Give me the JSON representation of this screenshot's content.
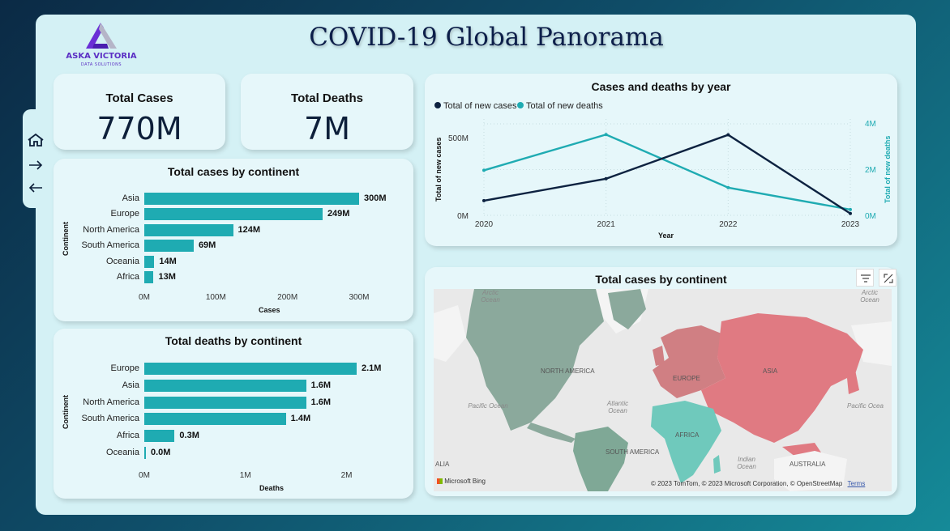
{
  "header": {
    "title": "COVID-19 Global Panorama",
    "logo_brand": "ASKA VICTORIA",
    "logo_sub": "DATA SOLUTIONS"
  },
  "nav": {
    "icons": [
      "home-icon",
      "arrow-right-icon",
      "arrow-left-icon"
    ]
  },
  "kpis": {
    "total_cases_label": "Total Cases",
    "total_cases_value": "770M",
    "total_deaths_label": "Total Deaths",
    "total_deaths_value": "7M"
  },
  "cases_by_continent": {
    "title": "Total cases by continent",
    "xlabel": "Cases",
    "ylabel": "Continent",
    "ticks": [
      "0M",
      "100M",
      "200M",
      "300M"
    ],
    "rows": [
      {
        "label": "Asia",
        "value": 300,
        "display": "300M"
      },
      {
        "label": "Europe",
        "value": 249,
        "display": "249M"
      },
      {
        "label": "North America",
        "value": 124,
        "display": "124M"
      },
      {
        "label": "South America",
        "value": 69,
        "display": "69M"
      },
      {
        "label": "Oceania",
        "value": 14,
        "display": "14M"
      },
      {
        "label": "Africa",
        "value": 13,
        "display": "13M"
      }
    ]
  },
  "deaths_by_continent": {
    "title": "Total deaths by continent",
    "xlabel": "Deaths",
    "ylabel": "Continent",
    "ticks": [
      "0M",
      "1M",
      "2M"
    ],
    "rows": [
      {
        "label": "Europe",
        "value": 2.1,
        "display": "2.1M"
      },
      {
        "label": "Asia",
        "value": 1.6,
        "display": "1.6M"
      },
      {
        "label": "North America",
        "value": 1.6,
        "display": "1.6M"
      },
      {
        "label": "South America",
        "value": 1.4,
        "display": "1.4M"
      },
      {
        "label": "Africa",
        "value": 0.3,
        "display": "0.3M"
      },
      {
        "label": "Oceania",
        "value": 0.0,
        "display": "0.0M"
      }
    ]
  },
  "cases_deaths_year": {
    "title": "Cases and deaths by year",
    "legend_cases": "Total of new cases",
    "legend_deaths": "Total of new deaths",
    "xlabel": "Year",
    "ylabel_left": "Total of new cases",
    "ylabel_right": "Total of new deaths",
    "left_ticks": [
      "500M",
      "0M"
    ],
    "right_ticks": [
      "4M",
      "2M",
      "0M"
    ],
    "years": [
      "2020",
      "2021",
      "2022",
      "2023"
    ],
    "color_cases": "#0d2240",
    "color_deaths": "#1fabb2"
  },
  "chart_data": [
    {
      "type": "bar",
      "title": "Total cases by continent",
      "categories": [
        "Asia",
        "Europe",
        "North America",
        "South America",
        "Oceania",
        "Africa"
      ],
      "values": [
        300,
        249,
        124,
        69,
        14,
        13
      ],
      "xlabel": "Cases",
      "ylabel": "Continent",
      "unit": "M"
    },
    {
      "type": "bar",
      "title": "Total deaths by continent",
      "categories": [
        "Europe",
        "Asia",
        "North America",
        "South America",
        "Africa",
        "Oceania"
      ],
      "values": [
        2.1,
        1.6,
        1.6,
        1.4,
        0.3,
        0.0
      ],
      "xlabel": "Deaths",
      "ylabel": "Continent",
      "unit": "M"
    },
    {
      "type": "line",
      "title": "Cases and deaths by year",
      "x": [
        "2020",
        "2021",
        "2022",
        "2023"
      ],
      "series": [
        {
          "name": "Total of new cases",
          "values": [
            80,
            200,
            440,
            10
          ],
          "unit": "M",
          "axis": "left"
        },
        {
          "name": "Total of new deaths",
          "values": [
            1.95,
            3.5,
            1.2,
            0.25
          ],
          "unit": "M",
          "axis": "right"
        }
      ],
      "xlabel": "Year",
      "ylim_left": [
        0,
        600
      ],
      "ylim_right": [
        0,
        4
      ]
    }
  ],
  "map": {
    "title": "Total cases by continent",
    "labels": {
      "north_america": "NORTH AMERICA",
      "south_america": "SOUTH AMERICA",
      "europe": "EUROPE",
      "asia": "ASIA",
      "africa": "AFRICA",
      "australia": "AUSTRALIA",
      "alia": "ALIA"
    },
    "oceans": {
      "arctic_left": "Arctic Ocean",
      "arctic_right": "Arctic Ocean",
      "pacific_left": "Pacific Ocean",
      "atlantic": "Atlantic Ocean",
      "pacific_right": "Pacific Ocea",
      "indian": "Indian Ocean"
    },
    "attribution": "© 2023 TomTom, © 2023 Microsoft Corporation, © OpenStreetMap",
    "terms": "Terms",
    "bing": "Microsoft Bing"
  }
}
